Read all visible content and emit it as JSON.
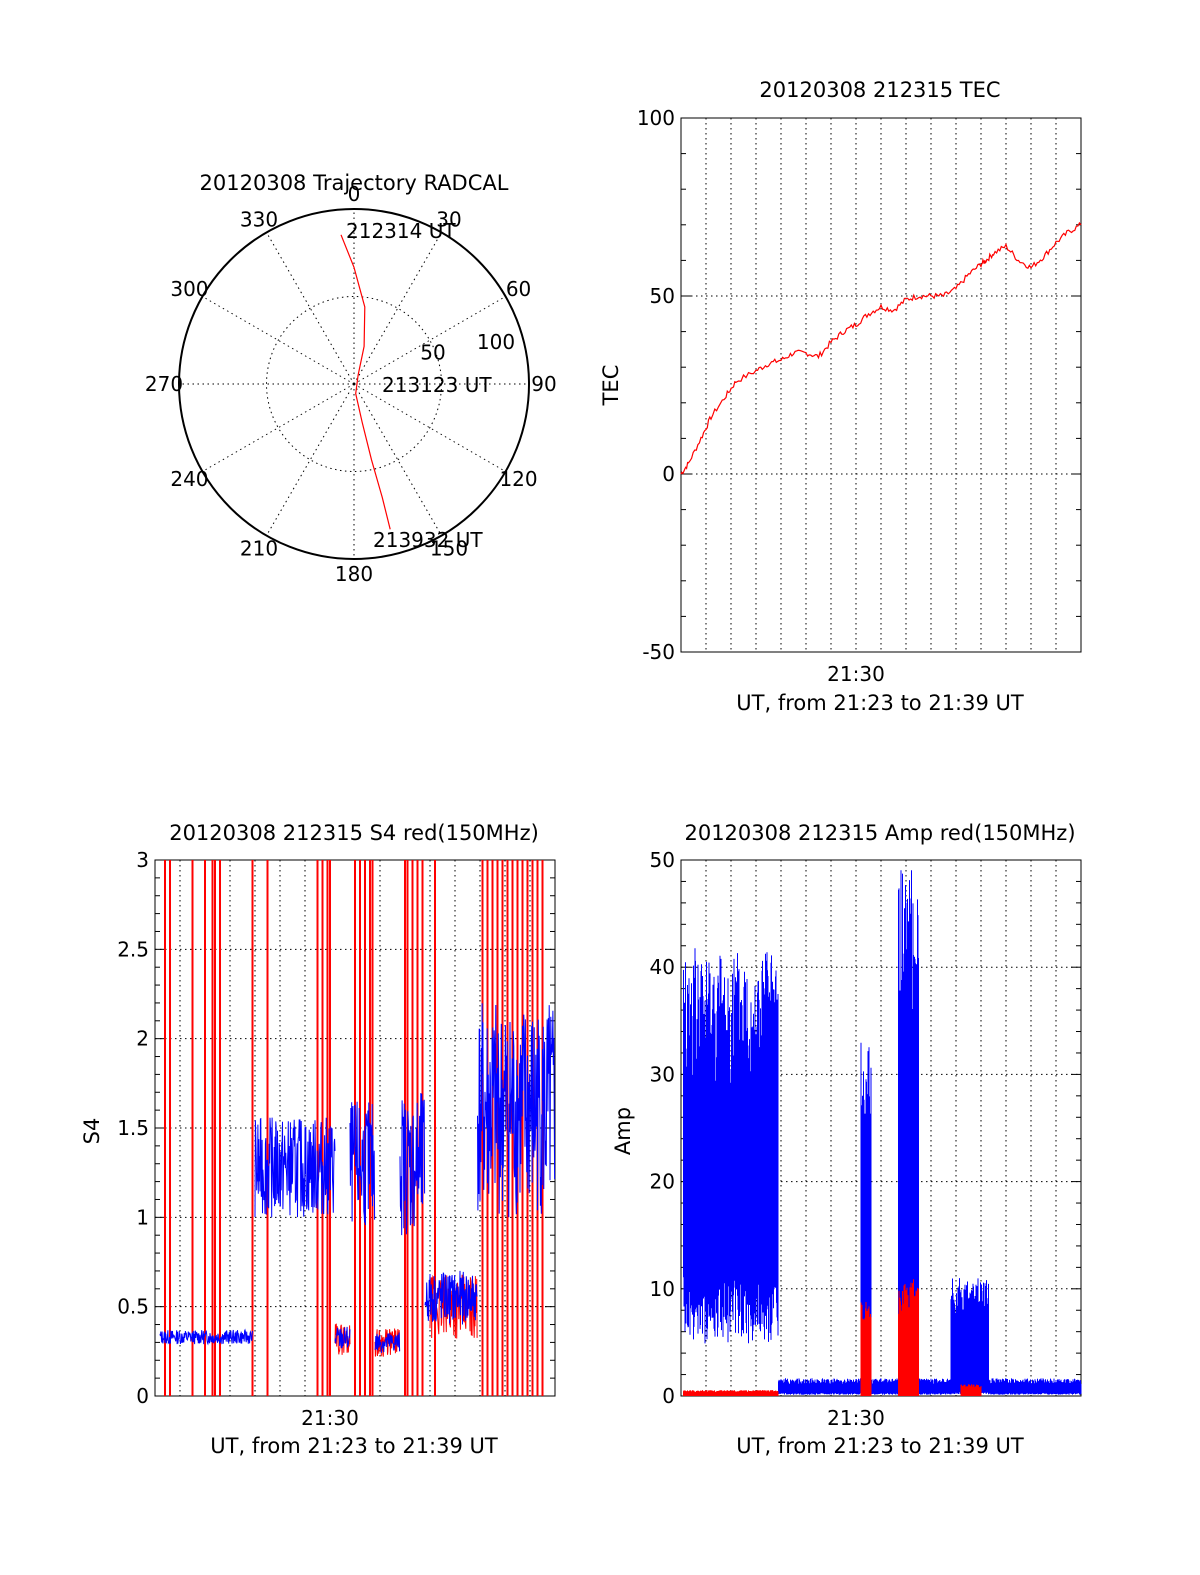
{
  "chart_data": [
    {
      "type": "polar",
      "title": "20120308 Trajectory RADCAL",
      "angle_labels": [
        "0",
        "30",
        "60",
        "90",
        "120",
        "150",
        "180",
        "210",
        "240",
        "270",
        "300",
        "330"
      ],
      "radius_labels": [
        "50",
        "100"
      ],
      "rlim": [
        0,
        100
      ],
      "series": [
        {
          "name": "trajectory",
          "color": "#ff0000",
          "points": [
            {
              "az": 355,
              "el": 13
            },
            {
              "az": 0,
              "el": 30
            },
            {
              "az": 8,
              "el": 50
            },
            {
              "az": 15,
              "el": 70
            },
            {
              "az": 25,
              "el": 85
            },
            {
              "az": 170,
              "el": 85
            },
            {
              "az": 168,
              "el": 70
            },
            {
              "az": 167,
              "el": 50
            },
            {
              "az": 166,
              "el": 30
            },
            {
              "az": 166,
              "el": 13
            }
          ]
        }
      ],
      "annotations": [
        "212314 UT",
        "213123 UT",
        "213932 UT"
      ]
    },
    {
      "type": "line",
      "title": "20120308 212315 TEC",
      "xlabel": "UT, from 21:23 to 21:39 UT",
      "ylabel": "TEC",
      "xlim": [
        0,
        16
      ],
      "ylim": [
        -50,
        100
      ],
      "yticks": [
        "-50",
        "0",
        "50",
        "100"
      ],
      "xticks": [
        {
          "t": 7,
          "label": "21:30"
        }
      ],
      "series": [
        {
          "name": "TEC",
          "color": "#ff0000",
          "x": [
            0,
            0.3,
            0.8,
            1.2,
            1.8,
            2.2,
            3,
            3.5,
            4,
            4.5,
            5,
            5.5,
            6,
            6.5,
            7,
            7.5,
            8,
            8.5,
            9,
            9.5,
            10,
            10.5,
            11,
            11.5,
            12,
            12.2,
            12.5,
            13,
            13.5,
            14,
            14.5,
            15,
            15.5,
            16
          ],
          "y": [
            0,
            3,
            10,
            16,
            22,
            26,
            29,
            31,
            32,
            34,
            34,
            33,
            37,
            40,
            42,
            45,
            47,
            46,
            49,
            50,
            50,
            50,
            52,
            56,
            59,
            60,
            62,
            64,
            60,
            58,
            61,
            65,
            68,
            70
          ]
        }
      ]
    },
    {
      "type": "line",
      "title": "20120308 212315 S4 red(150MHz)",
      "xlabel": "UT, from 21:23 to 21:39 UT",
      "ylabel": "S4",
      "xlim": [
        0,
        16
      ],
      "ylim": [
        0,
        3
      ],
      "yticks": [
        "0",
        "0.5",
        "1",
        "1.5",
        "2",
        "2.5",
        "3"
      ],
      "xticks": [
        {
          "t": 7,
          "label": "21:30"
        }
      ],
      "series": [
        {
          "name": "S4 blue",
          "color": "#0000ff",
          "segments": [
            {
              "t0": 0.2,
              "t1": 3.9,
              "level": 0.33,
              "amp": 0.04,
              "step": 0.05
            },
            {
              "t0": 4.0,
              "t1": 7.2,
              "level": 1.28,
              "amp": 0.28,
              "step": 0.05
            },
            {
              "t0": 7.2,
              "t1": 7.8,
              "level": 0.32,
              "amp": 0.07,
              "step": 0.05
            },
            {
              "t0": 7.8,
              "t1": 8.8,
              "level": 1.3,
              "amp": 0.35,
              "step": 0.05
            },
            {
              "t0": 8.8,
              "t1": 9.8,
              "level": 0.3,
              "amp": 0.06,
              "step": 0.05
            },
            {
              "t0": 9.8,
              "t1": 10.8,
              "level": 1.3,
              "amp": 0.4,
              "step": 0.05
            },
            {
              "t0": 10.8,
              "t1": 12.9,
              "level": 0.55,
              "amp": 0.15,
              "step": 0.05
            },
            {
              "t0": 12.9,
              "t1": 16,
              "level": 1.6,
              "amp": 0.6,
              "step": 0.05
            }
          ]
        },
        {
          "name": "S4 red",
          "color": "#ff0000",
          "spikes": [
            0.4,
            0.6,
            1.5,
            2.0,
            2.3,
            2.4,
            2.6,
            3.9,
            4.5,
            6.5,
            6.7,
            6.9,
            7.0,
            8.0,
            8.2,
            8.4,
            8.6,
            8.7,
            10.0,
            10.1,
            10.3,
            10.5,
            10.7,
            11.2,
            13.1,
            13.3,
            13.5,
            13.7,
            13.9,
            14.1,
            14.3,
            14.5,
            14.7,
            14.9,
            15.1,
            15.3,
            15.5
          ],
          "segments": [
            {
              "t0": 7.2,
              "t1": 7.8,
              "level": 0.32,
              "amp": 0.09,
              "step": 0.05
            },
            {
              "t0": 8.8,
              "t1": 9.8,
              "level": 0.3,
              "amp": 0.08,
              "step": 0.05
            },
            {
              "t0": 11.0,
              "t1": 12.9,
              "level": 0.5,
              "amp": 0.18,
              "step": 0.05
            }
          ]
        }
      ]
    },
    {
      "type": "line",
      "title": "20120308 212315 Amp red(150MHz)",
      "xlabel": "UT, from 21:23 to 21:39 UT",
      "ylabel": "Amp",
      "xlim": [
        0,
        16
      ],
      "ylim": [
        0,
        50
      ],
      "yticks": [
        "0",
        "10",
        "20",
        "30",
        "40",
        "50"
      ],
      "xticks": [
        {
          "t": 7,
          "label": "21:30"
        }
      ],
      "series": [
        {
          "name": "Amp blue",
          "color": "#0000ff",
          "bands": [
            {
              "t0": 0.1,
              "t1": 3.9,
              "lo": 8,
              "hi": 38
            },
            {
              "t0": 3.9,
              "t1": 7.2,
              "lo": 0.2,
              "hi": 1.5
            },
            {
              "t0": 7.2,
              "t1": 7.6,
              "lo": 0.5,
              "hi": 30
            },
            {
              "t0": 7.6,
              "t1": 8.7,
              "lo": 0.2,
              "hi": 1.5
            },
            {
              "t0": 8.7,
              "t1": 9.5,
              "lo": 1,
              "hi": 45
            },
            {
              "t0": 9.5,
              "t1": 10.8,
              "lo": 0.2,
              "hi": 1.5
            },
            {
              "t0": 10.8,
              "t1": 12.3,
              "lo": 0.3,
              "hi": 10
            },
            {
              "t0": 12.3,
              "t1": 16,
              "lo": 0.2,
              "hi": 1.5
            }
          ]
        },
        {
          "name": "Amp red",
          "color": "#ff0000",
          "bands": [
            {
              "t0": 0.1,
              "t1": 3.9,
              "lo": 0,
              "hi": 0.5
            },
            {
              "t0": 7.2,
              "t1": 7.6,
              "lo": 0,
              "hi": 8
            },
            {
              "t0": 8.7,
              "t1": 9.5,
              "lo": 0,
              "hi": 10
            },
            {
              "t0": 11.2,
              "t1": 12.0,
              "lo": 0,
              "hi": 1
            }
          ]
        }
      ]
    }
  ]
}
